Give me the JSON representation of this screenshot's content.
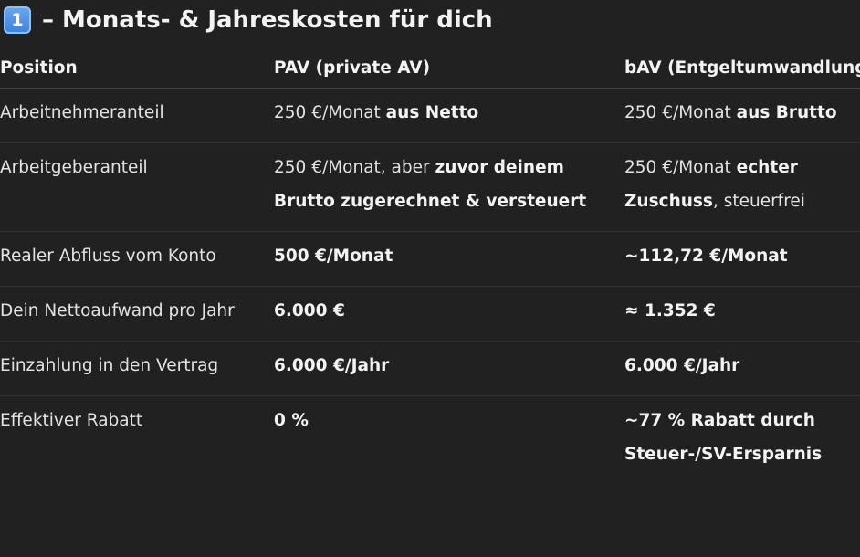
{
  "heading": {
    "badge": "1",
    "title": "– Monats- & Jahreskosten für dich"
  },
  "table": {
    "headers": [
      "Position",
      "PAV (private AV)",
      "bAV (Entgeltumwandlung)"
    ],
    "rows": [
      {
        "position": "Arbeitnehmeranteil",
        "pav": {
          "plain": "250 €/Monat ",
          "bold": "aus Netto"
        },
        "bav": {
          "plain": "250 €/Monat ",
          "bold": "aus Brutto"
        }
      },
      {
        "position": "Arbeitgeberanteil",
        "pav": {
          "plain": "250 €/Monat, aber ",
          "bold": "zuvor deinem Brutto zugerechnet & versteuert"
        },
        "bav": {
          "plain": "250 €/Monat ",
          "bold": "echter Zuschuss",
          "tail": ", steuerfrei"
        }
      },
      {
        "position": "Realer Abfluss vom Konto",
        "pav": {
          "bold": "500 €/Monat"
        },
        "bav": {
          "bold": "~112,72 €/Monat"
        }
      },
      {
        "position": "Dein Nettoaufwand pro Jahr",
        "pav": {
          "bold": "6.000 €"
        },
        "bav": {
          "bold": "≈ 1.352 €"
        }
      },
      {
        "position": "Einzahlung in den Vertrag",
        "pav": {
          "bold": "6.000 €/Jahr"
        },
        "bav": {
          "bold": "6.000 €/Jahr"
        }
      },
      {
        "position": "Effektiver Rabatt",
        "pav": {
          "bold": "0 %"
        },
        "bav": {
          "bold": "~77 % Rabatt durch Steuer-/SV-Ersparnis"
        }
      }
    ]
  }
}
